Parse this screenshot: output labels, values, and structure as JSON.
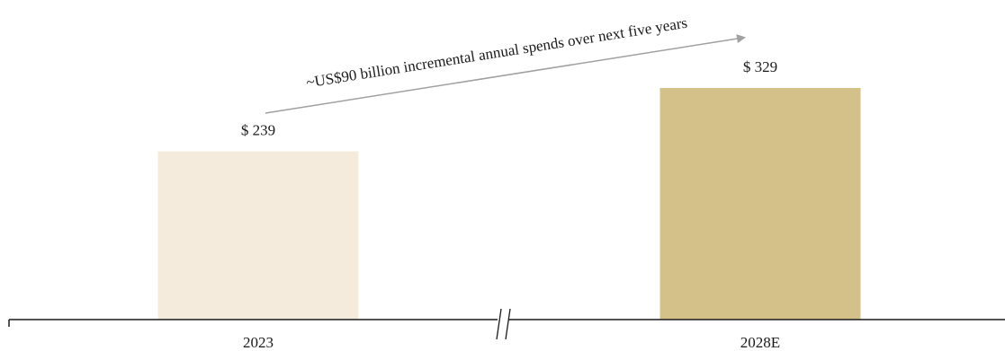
{
  "chart_data": {
    "type": "bar",
    "categories": [
      "2023",
      "2028E"
    ],
    "values": [
      239,
      329
    ],
    "value_labels": [
      "$ 239",
      "$ 329"
    ],
    "colors": [
      "#f5ebdc",
      "#d4c18a"
    ],
    "axis_color": "#1a1a1a",
    "arrow_color": "#a0a0a0",
    "annotation": "~US$90 billion incremental annual spends over next five years",
    "axis_break": true,
    "grid": false,
    "title": "",
    "xlabel": "",
    "ylabel": ""
  }
}
